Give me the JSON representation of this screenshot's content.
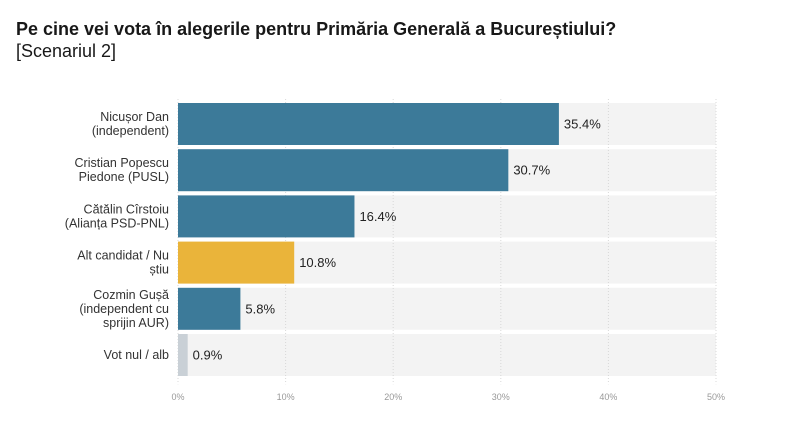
{
  "header": {
    "title": "Pe cine vei vota în alegerile pentru Primăria Generală a Bucureștiului?",
    "subtitle": "[Scenariul 2]"
  },
  "chart_data": {
    "type": "bar",
    "orientation": "horizontal",
    "title": "Pe cine vei vota în alegerile pentru Primăria Generală a Bucureștiului?",
    "subtitle": "[Scenariul 2]",
    "categories": [
      [
        "Nicușor Dan",
        "(independent)"
      ],
      [
        "Cristian Popescu",
        "Piedone (PUSL)"
      ],
      [
        "Cătălin Cîrstoiu",
        "(Alianța PSD-PNL)"
      ],
      [
        "Alt candidat / Nu",
        "știu"
      ],
      [
        "Cozmin Gușă",
        "(independent cu",
        "sprijin AUR)"
      ],
      [
        "Vot nul / alb"
      ]
    ],
    "values": [
      35.4,
      30.7,
      16.4,
      10.8,
      5.8,
      0.9
    ],
    "value_labels": [
      "35.4%",
      "30.7%",
      "16.4%",
      "10.8%",
      "5.8%",
      "0.9%"
    ],
    "bar_colors": [
      "#3c7a99",
      "#3c7a99",
      "#3c7a99",
      "#eab43a",
      "#3c7a99",
      "#c9d0d6"
    ],
    "xlim": [
      0,
      50
    ],
    "xticks": [
      0,
      10,
      20,
      30,
      40,
      50
    ],
    "xtick_labels": [
      "0%",
      "10%",
      "20%",
      "30%",
      "40%",
      "50%"
    ],
    "track_color": "#f3f3f3",
    "grid": true
  }
}
